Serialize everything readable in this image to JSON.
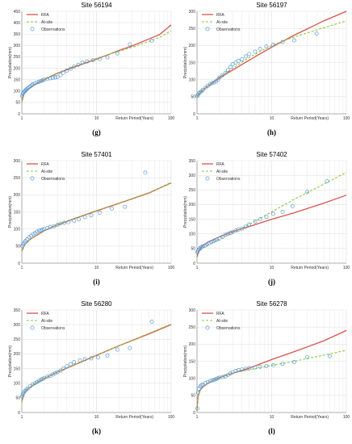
{
  "colors": {
    "rfa": "#d9534f",
    "at_site": "#8dc63f",
    "observations": "#5b9bd5",
    "grid": "#e2e2e2",
    "axis": "#9a9a9a"
  },
  "chart_data": [
    {
      "type": "line",
      "letter": "(g)",
      "title": "Site 56194",
      "xlabel": "Return Period(Years)",
      "ylabel": "Precipitation(mm)",
      "xscale": "log",
      "xlim": [
        1,
        100
      ],
      "ylim": [
        0,
        450
      ],
      "xticks": [
        1,
        10,
        100
      ],
      "yticks": [
        0,
        50,
        100,
        150,
        200,
        250,
        300,
        350,
        400,
        450
      ],
      "legend": [
        "RFA",
        "At-site",
        "Observations"
      ],
      "legend_position": "top-left",
      "grid": true,
      "series": [
        {
          "name": "RFA",
          "x": [
            1.0,
            1.05,
            1.1,
            1.2,
            1.4,
            1.7,
            2.0,
            2.5,
            3.0,
            5.0,
            7.0,
            10.0,
            15.0,
            20.0,
            30.0,
            50.0,
            70.0,
            100.0
          ],
          "y": [
            50,
            85,
            95,
            107,
            122,
            138,
            150,
            166,
            178,
            205,
            222,
            240,
            262,
            278,
            298,
            328,
            348,
            390
          ]
        },
        {
          "name": "At-site",
          "x": [
            1.0,
            1.05,
            1.1,
            1.2,
            1.4,
            1.7,
            2.0,
            2.5,
            3.0,
            5.0,
            7.0,
            10.0,
            15.0,
            20.0,
            30.0,
            50.0,
            70.0,
            100.0
          ],
          "y": [
            50,
            85,
            95,
            108,
            124,
            140,
            152,
            168,
            180,
            208,
            225,
            243,
            262,
            275,
            292,
            318,
            335,
            365
          ]
        },
        {
          "name": "Observations",
          "x": [
            1.01,
            1.03,
            1.05,
            1.08,
            1.1,
            1.13,
            1.16,
            1.2,
            1.25,
            1.3,
            1.35,
            1.4,
            1.5,
            1.6,
            1.7,
            1.8,
            1.9,
            2.0,
            2.2,
            2.4,
            2.6,
            2.8,
            3.0,
            3.3,
            3.6,
            4.0,
            4.5,
            5.0,
            5.7,
            6.5,
            7.5,
            9.0,
            11.0,
            14.0,
            19.0,
            28.0,
            55.0
          ],
          "y": [
            78,
            88,
            93,
            97,
            100,
            104,
            108,
            112,
            117,
            121,
            125,
            129,
            134,
            138,
            141,
            144,
            147,
            150,
            153,
            156,
            158,
            160,
            162,
            170,
            180,
            190,
            198,
            208,
            215,
            225,
            230,
            235,
            240,
            248,
            265,
            305,
            320
          ]
        }
      ]
    },
    {
      "type": "line",
      "letter": "(h)",
      "title": "Site 56197",
      "xlabel": "Return Period(Years)",
      "ylabel": "Precipitation(mm)",
      "xscale": "log",
      "xlim": [
        1,
        100
      ],
      "ylim": [
        0,
        300
      ],
      "xticks": [
        1,
        10,
        100
      ],
      "yticks": [
        0,
        50,
        100,
        150,
        200,
        250,
        300
      ],
      "legend": [
        "RFA",
        "At-site",
        "Observations"
      ],
      "legend_position": "top-left",
      "grid": true,
      "series": [
        {
          "name": "RFA",
          "x": [
            1.0,
            1.1,
            1.3,
            1.6,
            2.0,
            3.0,
            5.0,
            10.0,
            20.0,
            50.0,
            100.0
          ],
          "y": [
            50,
            62,
            76,
            90,
            105,
            128,
            157,
            195,
            230,
            272,
            300
          ]
        },
        {
          "name": "At-site",
          "x": [
            1.0,
            1.1,
            1.3,
            1.6,
            2.0,
            3.0,
            5.0,
            10.0,
            20.0,
            50.0,
            100.0
          ],
          "y": [
            50,
            62,
            77,
            92,
            108,
            133,
            165,
            200,
            225,
            252,
            272
          ]
        },
        {
          "name": "Observations",
          "x": [
            1.01,
            1.03,
            1.06,
            1.1,
            1.15,
            1.2,
            1.3,
            1.4,
            1.5,
            1.6,
            1.7,
            1.8,
            1.9,
            2.0,
            2.2,
            2.4,
            2.6,
            2.8,
            3.0,
            3.3,
            3.6,
            4.0,
            4.5,
            5.0,
            6.0,
            7.0,
            8.5,
            10.5,
            14.0,
            20.0,
            40.0
          ],
          "y": [
            52,
            56,
            60,
            63,
            66,
            70,
            76,
            82,
            87,
            90,
            92,
            95,
            100,
            106,
            113,
            120,
            128,
            137,
            145,
            150,
            155,
            160,
            168,
            175,
            182,
            190,
            197,
            202,
            210,
            215,
            235
          ]
        }
      ]
    },
    {
      "type": "line",
      "letter": "(i)",
      "title": "Site 57401",
      "xlabel": "Return Period(Years)",
      "ylabel": "Precipitation(mm)",
      "xscale": "log",
      "xlim": [
        1,
        100
      ],
      "ylim": [
        0,
        300
      ],
      "xticks": [
        1,
        10,
        100
      ],
      "yticks": [
        0,
        50,
        100,
        150,
        200,
        250,
        300
      ],
      "legend": [
        "RFA",
        "At-site",
        "Observations"
      ],
      "legend_position": "top-left",
      "grid": true,
      "series": [
        {
          "name": "RFA",
          "x": [
            1.0,
            1.1,
            1.3,
            1.6,
            2.0,
            3.0,
            5.0,
            10.0,
            20.0,
            50.0,
            100.0
          ],
          "y": [
            35,
            55,
            70,
            82,
            95,
            112,
            130,
            153,
            175,
            205,
            235
          ]
        },
        {
          "name": "At-site",
          "x": [
            1.0,
            1.1,
            1.3,
            1.6,
            2.0,
            3.0,
            5.0,
            10.0,
            20.0,
            50.0,
            100.0
          ],
          "y": [
            35,
            55,
            70,
            83,
            96,
            113,
            131,
            154,
            176,
            206,
            234
          ]
        },
        {
          "name": "Observations",
          "x": [
            1.01,
            1.04,
            1.08,
            1.12,
            1.18,
            1.25,
            1.33,
            1.42,
            1.5,
            1.6,
            1.7,
            1.8,
            1.9,
            2.0,
            2.2,
            2.4,
            2.7,
            3.0,
            3.3,
            3.7,
            4.2,
            5.0,
            5.8,
            7.0,
            8.5,
            11.0,
            16.0,
            24.0,
            45.0
          ],
          "y": [
            50,
            55,
            60,
            65,
            70,
            76,
            80,
            85,
            88,
            92,
            95,
            96,
            98,
            100,
            103,
            106,
            108,
            112,
            116,
            118,
            120,
            124,
            128,
            135,
            140,
            148,
            160,
            165,
            265
          ]
        }
      ]
    },
    {
      "type": "line",
      "letter": "(j)",
      "title": "Site 57402",
      "xlabel": "Return Period(Years)",
      "ylabel": "Precipitation(mm)",
      "xscale": "log",
      "xlim": [
        1,
        100
      ],
      "ylim": [
        0,
        350
      ],
      "xticks": [
        1,
        10,
        100
      ],
      "yticks": [
        0,
        50,
        100,
        150,
        200,
        250,
        300,
        350
      ],
      "legend": [
        "RFA",
        "At-site",
        "Observations"
      ],
      "legend_position": "top-left",
      "grid": true,
      "series": [
        {
          "name": "RFA",
          "x": [
            1.0,
            1.05,
            1.1,
            1.2,
            1.4,
            1.7,
            2.0,
            3.0,
            5.0,
            10.0,
            20.0,
            50.0,
            100.0
          ],
          "y": [
            20,
            40,
            50,
            60,
            72,
            82,
            90,
            108,
            125,
            150,
            172,
            205,
            232
          ]
        },
        {
          "name": "At-site",
          "x": [
            1.0,
            1.05,
            1.1,
            1.2,
            1.4,
            1.7,
            2.0,
            3.0,
            5.0,
            10.0,
            20.0,
            50.0,
            100.0
          ],
          "y": [
            18,
            35,
            43,
            52,
            62,
            72,
            82,
            103,
            132,
            175,
            218,
            270,
            310
          ]
        },
        {
          "name": "Observations",
          "x": [
            1.01,
            1.03,
            1.06,
            1.1,
            1.15,
            1.2,
            1.28,
            1.36,
            1.45,
            1.55,
            1.65,
            1.75,
            1.85,
            2.0,
            2.2,
            2.4,
            2.6,
            2.8,
            3.0,
            3.3,
            3.6,
            4.0,
            4.5,
            5.0,
            6.0,
            7.0,
            8.5,
            10.5,
            14.0,
            19.0,
            30.0,
            55.0
          ],
          "y": [
            38,
            42,
            47,
            52,
            55,
            58,
            60,
            64,
            68,
            72,
            75,
            78,
            80,
            84,
            90,
            97,
            100,
            103,
            107,
            111,
            115,
            118,
            125,
            132,
            142,
            150,
            158,
            168,
            175,
            195,
            243,
            280
          ]
        }
      ]
    },
    {
      "type": "line",
      "letter": "(k)",
      "title": "Site 56280",
      "xlabel": "Return Period(Years)",
      "ylabel": "Precipitation(mm)",
      "xscale": "log",
      "xlim": [
        1,
        100
      ],
      "ylim": [
        0,
        350
      ],
      "xticks": [
        1,
        10,
        100
      ],
      "yticks": [
        0,
        50,
        100,
        150,
        200,
        250,
        300,
        350
      ],
      "legend": [
        "RFA",
        "At-site",
        "Observations"
      ],
      "legend_position": "top-left",
      "grid": true,
      "series": [
        {
          "name": "RFA",
          "x": [
            1.0,
            1.05,
            1.1,
            1.2,
            1.4,
            1.7,
            2.0,
            3.0,
            5.0,
            10.0,
            20.0,
            50.0,
            100.0
          ],
          "y": [
            35,
            60,
            70,
            80,
            93,
            106,
            116,
            138,
            162,
            195,
            228,
            268,
            300
          ]
        },
        {
          "name": "At-site",
          "x": [
            1.0,
            1.05,
            1.1,
            1.2,
            1.4,
            1.7,
            2.0,
            3.0,
            5.0,
            10.0,
            20.0,
            50.0,
            100.0
          ],
          "y": [
            35,
            61,
            71,
            81,
            94,
            107,
            117,
            139,
            163,
            196,
            228,
            270,
            302
          ]
        },
        {
          "name": "Observations",
          "x": [
            1.01,
            1.03,
            1.06,
            1.1,
            1.15,
            1.2,
            1.3,
            1.4,
            1.5,
            1.6,
            1.7,
            1.8,
            1.9,
            2.0,
            2.2,
            2.4,
            2.6,
            2.8,
            3.0,
            3.3,
            3.6,
            4.0,
            4.5,
            5.0,
            6.0,
            7.0,
            8.5,
            10.5,
            14.0,
            19.0,
            28.0,
            55.0
          ],
          "y": [
            55,
            62,
            68,
            73,
            78,
            82,
            90,
            96,
            100,
            104,
            108,
            112,
            115,
            118,
            122,
            125,
            130,
            134,
            138,
            143,
            150,
            158,
            165,
            172,
            178,
            182,
            185,
            188,
            195,
            215,
            220,
            310
          ]
        }
      ]
    },
    {
      "type": "line",
      "letter": "(l)",
      "title": "Site 56278",
      "xlabel": "Return Period(Years)",
      "ylabel": "Precipitation(mm)",
      "xscale": "log",
      "xlim": [
        1,
        100
      ],
      "ylim": [
        0,
        300
      ],
      "xticks": [
        1,
        10,
        100
      ],
      "yticks": [
        0,
        50,
        100,
        150,
        200,
        250,
        300
      ],
      "legend": [
        "RFA",
        "At-site",
        "Observations"
      ],
      "legend_position": "top-left",
      "grid": true,
      "series": [
        {
          "name": "RFA",
          "x": [
            1.0,
            1.03,
            1.06,
            1.1,
            1.2,
            1.4,
            1.7,
            2.0,
            3.0,
            5.0,
            10.0,
            20.0,
            50.0,
            100.0
          ],
          "y": [
            5,
            45,
            55,
            65,
            75,
            85,
            95,
            102,
            115,
            130,
            155,
            178,
            210,
            240
          ]
        },
        {
          "name": "At-site",
          "x": [
            1.0,
            1.03,
            1.06,
            1.1,
            1.2,
            1.4,
            1.7,
            2.0,
            3.0,
            5.0,
            10.0,
            20.0,
            50.0,
            100.0
          ],
          "y": [
            8,
            50,
            58,
            66,
            76,
            86,
            95,
            103,
            115,
            125,
            138,
            150,
            168,
            182
          ]
        },
        {
          "name": "Observations",
          "x": [
            1.01,
            1.03,
            1.06,
            1.1,
            1.15,
            1.2,
            1.3,
            1.4,
            1.5,
            1.6,
            1.7,
            1.8,
            1.9,
            2.0,
            2.2,
            2.4,
            2.6,
            2.8,
            3.0,
            3.3,
            3.6,
            4.0,
            4.5,
            5.0,
            6.0,
            7.0,
            8.5,
            10.5,
            14.0,
            20.0,
            30.0,
            60.0
          ],
          "y": [
            12,
            58,
            70,
            76,
            80,
            82,
            86,
            89,
            92,
            94,
            96,
            98,
            100,
            102,
            104,
            106,
            110,
            114,
            118,
            122,
            124,
            126,
            128,
            130,
            132,
            134,
            136,
            138,
            142,
            148,
            162,
            165
          ]
        }
      ]
    }
  ]
}
